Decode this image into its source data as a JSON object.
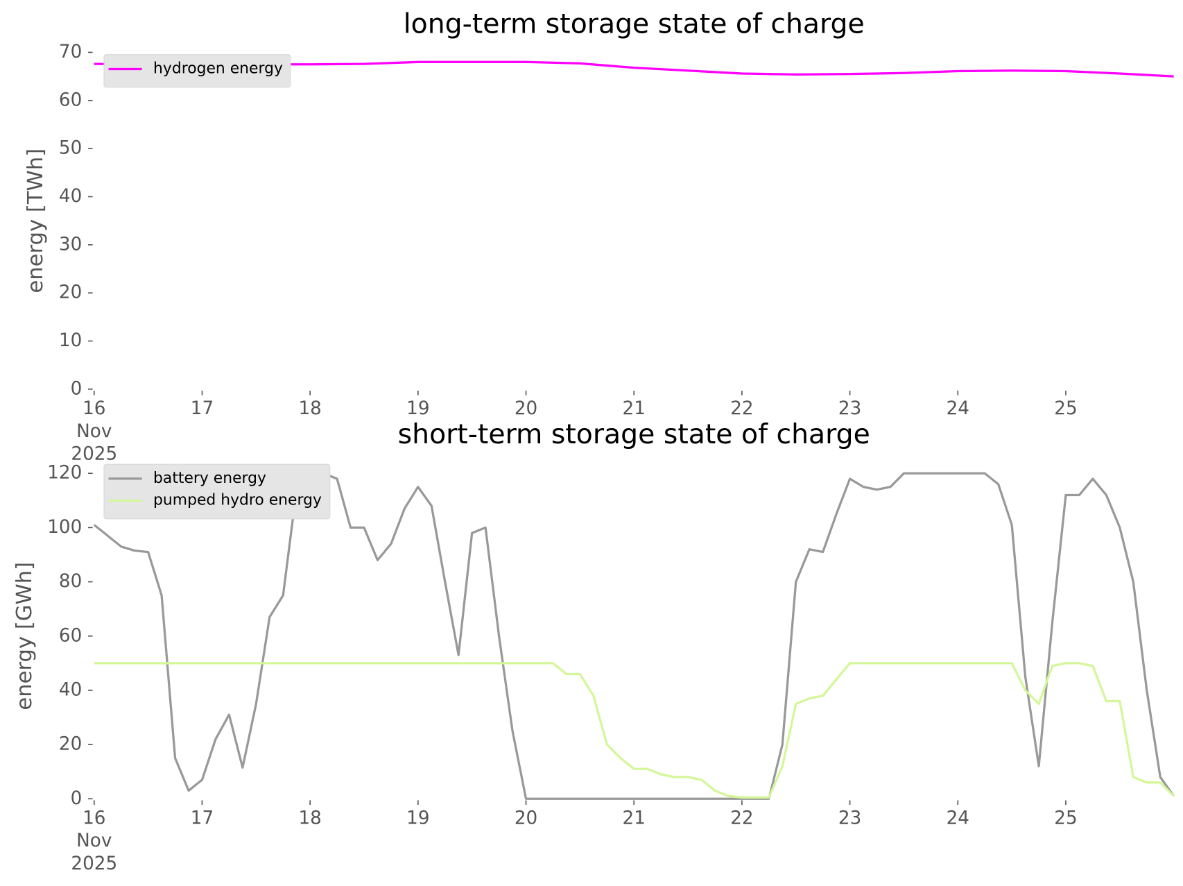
{
  "chart_data": [
    {
      "type": "line",
      "title": "long-term storage state of charge",
      "ylabel": "energy [TWh]",
      "x": [
        16,
        16.5,
        17,
        17.5,
        18,
        18.5,
        19,
        19.5,
        20,
        20.5,
        21,
        21.5,
        22,
        22.5,
        23,
        23.5,
        24,
        24.5,
        25,
        25.5,
        26
      ],
      "xlim": [
        16,
        26
      ],
      "xticks": [
        {
          "value": 16,
          "label": "16\nNov\n2025"
        },
        17,
        18,
        19,
        20,
        21,
        22,
        23,
        24,
        25
      ],
      "ylim": [
        0,
        70
      ],
      "yticks": [
        0,
        10,
        20,
        30,
        40,
        50,
        60,
        70
      ],
      "legend": "upper left",
      "series": [
        {
          "name": "hydrogen energy",
          "color": "#ff00ff",
          "values": [
            67.6,
            67.5,
            67.5,
            67.5,
            67.5,
            67.6,
            68.0,
            68.0,
            68.0,
            67.7,
            66.8,
            66.2,
            65.6,
            65.4,
            65.5,
            65.7,
            66.1,
            66.2,
            66.1,
            65.6,
            65.0
          ]
        }
      ]
    },
    {
      "type": "line",
      "title": "short-term storage state of charge",
      "ylabel": "energy [GWh]",
      "x": [
        16,
        16.125,
        16.25,
        16.375,
        16.5,
        16.625,
        16.75,
        16.875,
        17,
        17.125,
        17.25,
        17.375,
        17.5,
        17.625,
        17.75,
        17.875,
        18,
        18.125,
        18.25,
        18.375,
        18.5,
        18.625,
        18.75,
        18.875,
        19,
        19.125,
        19.25,
        19.375,
        19.5,
        19.625,
        19.75,
        19.875,
        20,
        20.125,
        20.25,
        20.375,
        20.5,
        20.625,
        20.75,
        20.875,
        21,
        21.125,
        21.25,
        21.375,
        21.5,
        21.625,
        21.75,
        21.875,
        22,
        22.125,
        22.25,
        22.375,
        22.5,
        22.625,
        22.75,
        22.875,
        23,
        23.125,
        23.25,
        23.375,
        23.5,
        23.625,
        23.75,
        23.875,
        24,
        24.125,
        24.25,
        24.375,
        24.5,
        24.625,
        24.75,
        24.875,
        25,
        25.125,
        25.25,
        25.375,
        25.5,
        25.625,
        25.75,
        25.875,
        26
      ],
      "xlim": [
        16,
        26
      ],
      "xticks": [
        {
          "value": 16,
          "label": "16\nNov\n2025"
        },
        17,
        18,
        19,
        20,
        21,
        22,
        23,
        24,
        25
      ],
      "ylim": [
        0,
        120
      ],
      "yticks": [
        0,
        20,
        40,
        60,
        80,
        100,
        120
      ],
      "legend": "upper left",
      "series": [
        {
          "name": "battery energy",
          "color": "#999999",
          "values": [
            101,
            97,
            93,
            91.5,
            91,
            75,
            15,
            3,
            7,
            22,
            31,
            11.5,
            35,
            67,
            75,
            114,
            120,
            120,
            118,
            100,
            100,
            88,
            94,
            107,
            115,
            108,
            80,
            53,
            98,
            100,
            60,
            25,
            0,
            0,
            0,
            0,
            0,
            0,
            0,
            0,
            0,
            0,
            0,
            0,
            0,
            0,
            0,
            0,
            0,
            0,
            0,
            20,
            80,
            92,
            91,
            105,
            118,
            115,
            114,
            115,
            120,
            120,
            120,
            120,
            120,
            120,
            120,
            116,
            101,
            45,
            12,
            65,
            112,
            112,
            118,
            112,
            100,
            80,
            40,
            8,
            1
          ]
        },
        {
          "name": "pumped hydro energy",
          "color": "#d4f79a",
          "values": [
            50,
            50,
            50,
            50,
            50,
            50,
            50,
            50,
            50,
            50,
            50,
            50,
            50,
            50,
            50,
            50,
            50,
            50,
            50,
            50,
            50,
            50,
            50,
            50,
            50,
            50,
            50,
            50,
            50,
            50,
            50,
            50,
            50,
            50,
            50,
            46,
            46,
            38,
            20,
            15,
            11,
            11,
            9,
            8,
            8,
            7,
            3,
            1,
            0.5,
            0.5,
            0.5,
            12,
            35,
            37,
            38,
            44,
            50,
            50,
            50,
            50,
            50,
            50,
            50,
            50,
            50,
            50,
            50,
            50,
            50,
            40,
            35,
            49,
            50,
            50,
            49,
            36,
            36,
            8,
            6,
            6,
            1
          ]
        }
      ]
    }
  ]
}
